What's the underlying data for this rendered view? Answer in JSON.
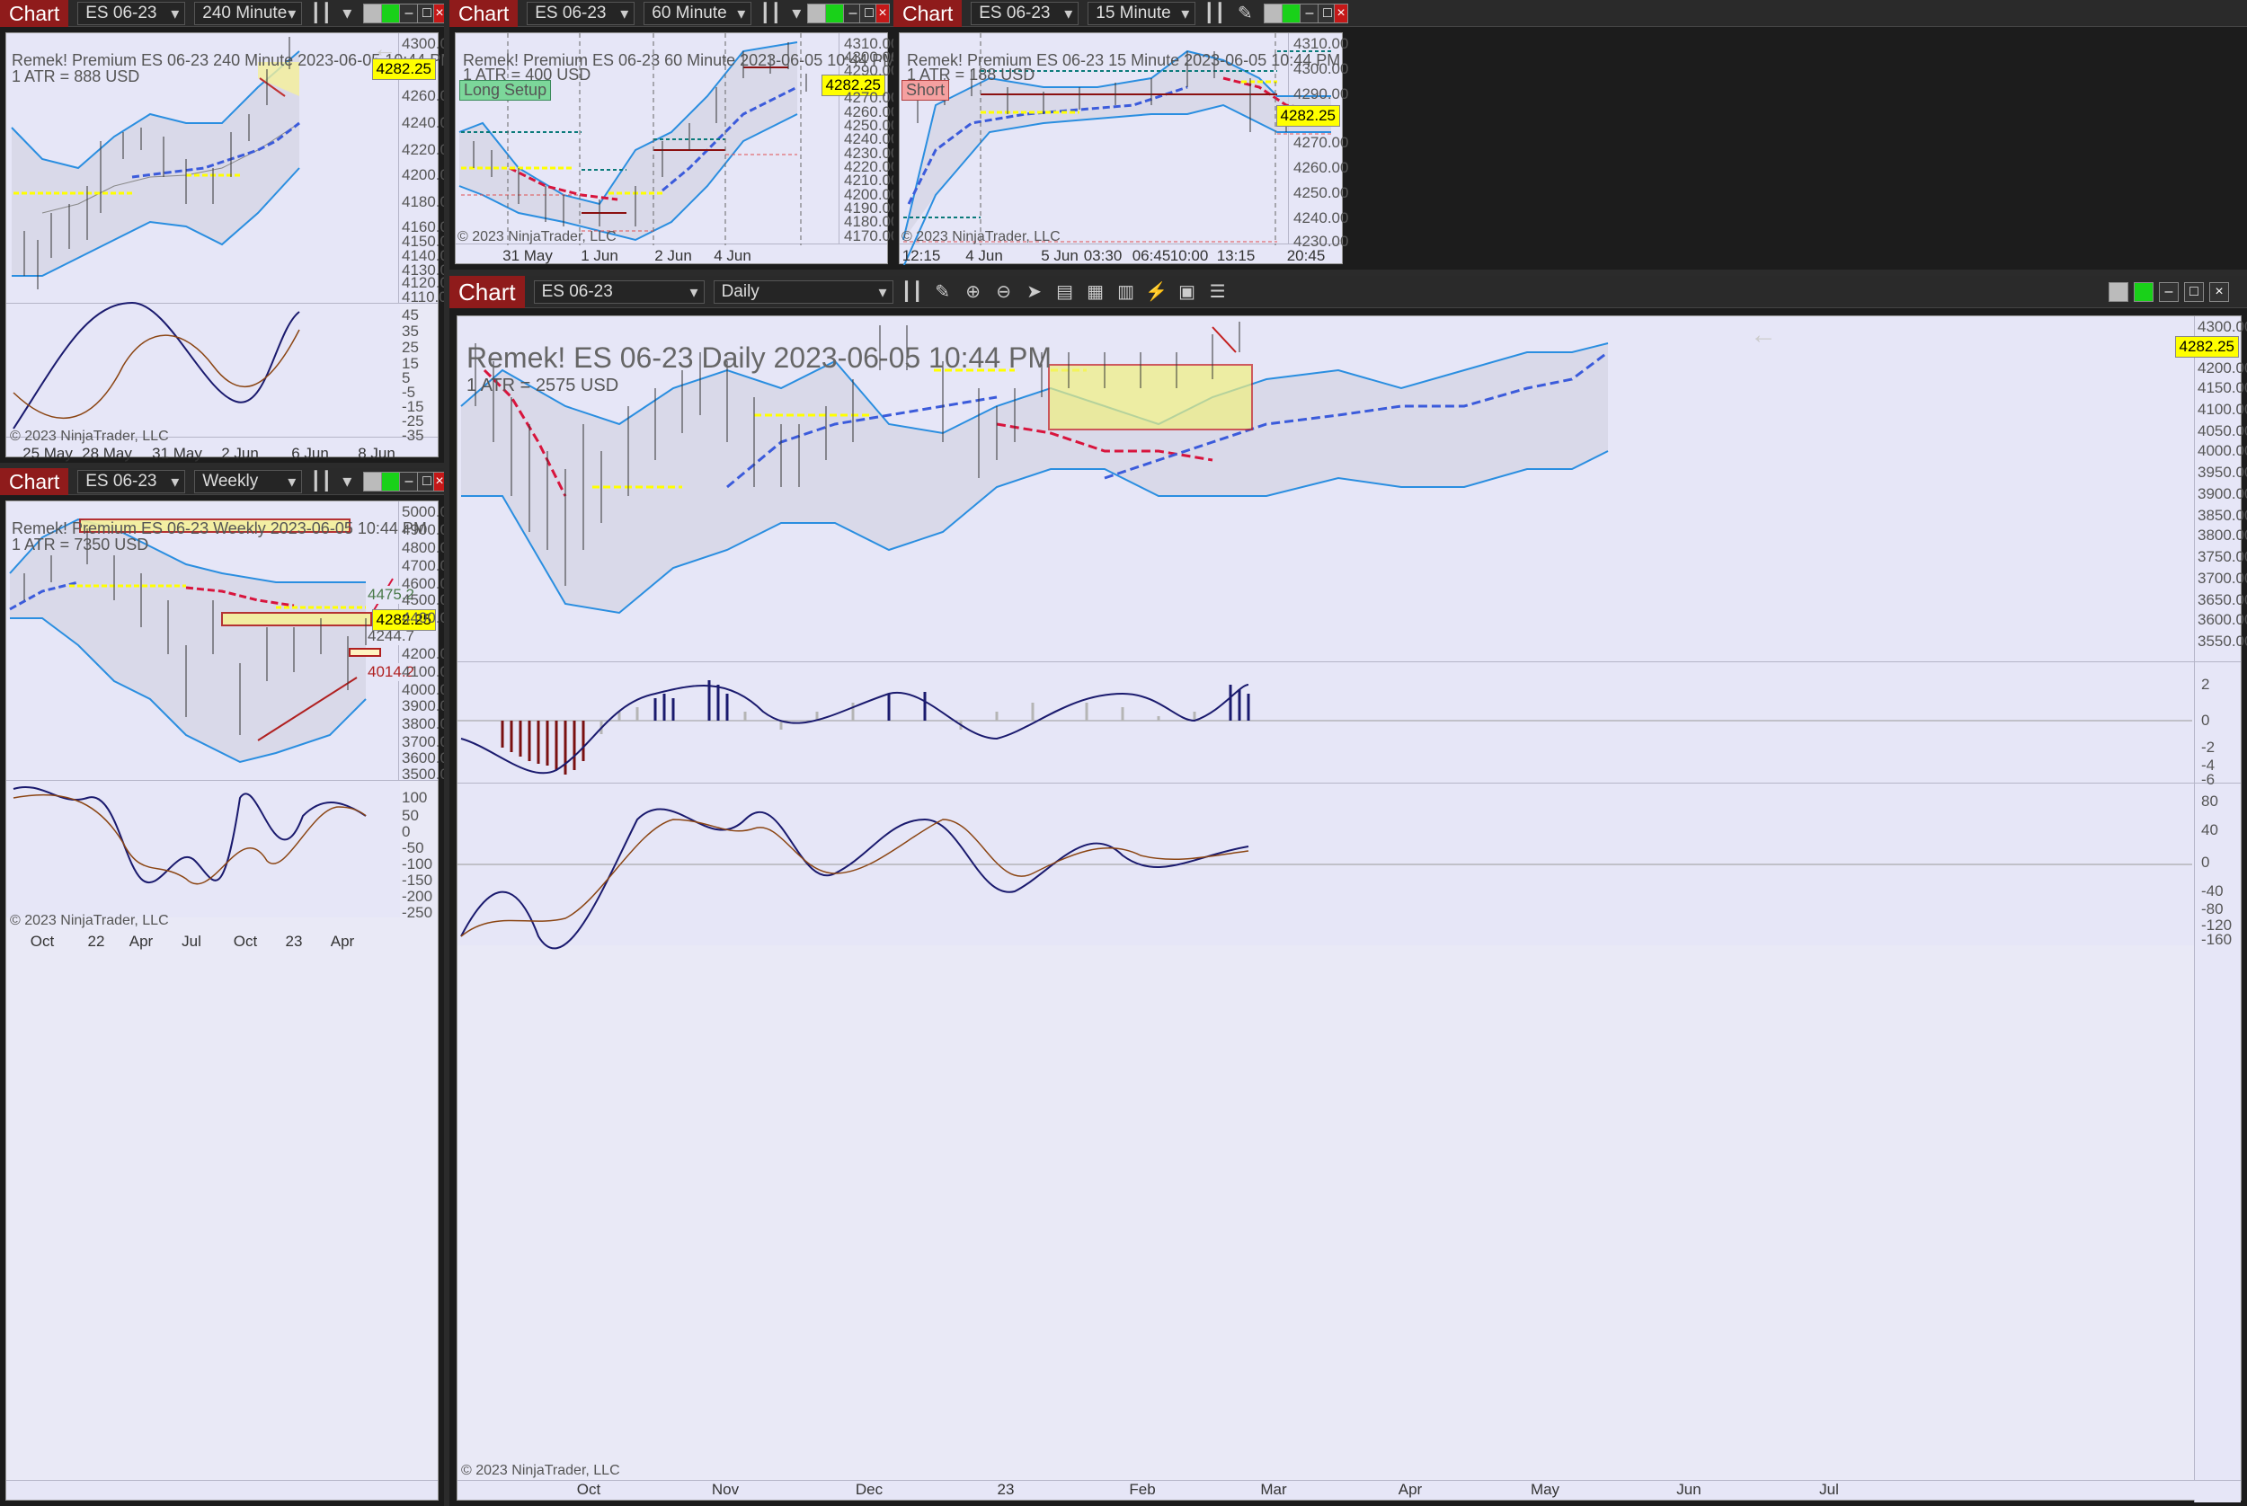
{
  "brand": "Chart",
  "windows": {
    "w240": {
      "instrument": "ES 06-23",
      "interval": "240 Minute",
      "header": "Remek!  Premium  ES 06-23  240 Minute  2023-06-05 10:44 PM",
      "atr": "1 ATR = 888 USD",
      "price": "4282.25",
      "y_labels": [
        "4300.00",
        "4280.00",
        "4260.00",
        "4240.00",
        "4220.00",
        "4200.00",
        "4180.00",
        "4160.00",
        "4150.00",
        "4140.00",
        "4130.00",
        "4120.00",
        "4110.00"
      ],
      "osc_labels": [
        "45",
        "35",
        "25",
        "15",
        "5",
        "-5",
        "-15",
        "-25",
        "-35"
      ],
      "x_labels": [
        "25 May",
        "28 May",
        "31 May",
        "2 Jun",
        "6 Jun",
        "8 Jun"
      ],
      "copyright": "© 2023 NinjaTrader, LLC"
    },
    "w60": {
      "instrument": "ES 06-23",
      "interval": "60 Minute",
      "header": "Remek!  Premium  ES 06-23  60 Minute  2023-06-05 10:44 PM",
      "atr": "1 ATR = 400 USD",
      "tag": "Long Setup",
      "price": "4282.25",
      "y_labels": [
        "4310.00",
        "4300.00",
        "4290.00",
        "4280.00",
        "4270.00",
        "4260.00",
        "4250.00",
        "4240.00",
        "4230.00",
        "4220.00",
        "4210.00",
        "4200.00",
        "4190.00",
        "4180.00",
        "4170.00"
      ],
      "x_labels": [
        "31 May",
        "1 Jun",
        "2 Jun",
        "4 Jun"
      ],
      "copyright": "© 2023 NinjaTrader, LLC"
    },
    "w15": {
      "instrument": "ES 06-23",
      "interval": "15 Minute",
      "header": "Remek!  Premium  ES 06-23  15 Minute  2023-06-05 10:44 PM",
      "atr": "1 ATR = 188 USD",
      "tag": "Short",
      "price": "4282.25",
      "y_labels": [
        "4310.00",
        "4300.00",
        "4290.00",
        "4280.00",
        "4270.00",
        "4260.00",
        "4250.00",
        "4240.00",
        "4230.00"
      ],
      "x_labels": [
        "12:15",
        "4 Jun",
        "5 Jun",
        "03:30",
        "06:45",
        "10:00",
        "13:15",
        "20:45"
      ],
      "copyright": "© 2023 NinjaTrader, LLC"
    },
    "wweekly": {
      "instrument": "ES 06-23",
      "interval": "Weekly",
      "header": "Remek!  Premium  ES 06-23  Weekly  2023-06-05 10:44 PM",
      "atr": "1 ATR = 7350 USD",
      "price": "4282.25",
      "level_a": "4475.2",
      "level_b": "4244.7",
      "level_c": "4014.2",
      "y_labels": [
        "5000.00",
        "4900.00",
        "4800.00",
        "4700.00",
        "4600.00",
        "4500.00",
        "4400.00",
        "4200.00",
        "4100.00",
        "4000.00",
        "3900.00",
        "3800.00",
        "3700.00",
        "3600.00",
        "3500.00"
      ],
      "osc_labels": [
        "100",
        "50",
        "0",
        "-50",
        "-100",
        "-150",
        "-200",
        "-250"
      ],
      "x_labels": [
        "Oct",
        "22",
        "Apr",
        "Jul",
        "Oct",
        "23",
        "Apr"
      ],
      "copyright": "© 2023 NinjaTrader, LLC"
    },
    "wdaily": {
      "instrument": "ES 06-23",
      "interval": "Daily",
      "header": "Remek!  ES 06-23  Daily  2023-06-05 10:44 PM",
      "atr": "1 ATR = 2575 USD",
      "price": "4282.25",
      "y_labels": [
        "4300.00",
        "4200.00",
        "4150.00",
        "4100.00",
        "4050.00",
        "4000.00",
        "3950.00",
        "3900.00",
        "3850.00",
        "3800.00",
        "3750.00",
        "3700.00",
        "3650.00",
        "3600.00",
        "3550.00"
      ],
      "hist_labels": [
        "2",
        "0",
        "-2",
        "-4",
        "-6"
      ],
      "osc_labels": [
        "80",
        "40",
        "0",
        "-40",
        "-80",
        "-120",
        "-160"
      ],
      "x_labels": [
        "Oct",
        "Nov",
        "Dec",
        "23",
        "Feb",
        "Mar",
        "Apr",
        "May",
        "Jun",
        "Jul"
      ],
      "copyright": "© 2023 NinjaTrader, LLC"
    }
  },
  "colors": {
    "bull": "#1a4d1a",
    "bear": "#7a1010",
    "band": "#2a8ee0",
    "accent_red": "#d8143c",
    "accent_blue": "#3b5bdb",
    "yellow": "#ffff00",
    "title_bar": "#8f1b1b"
  }
}
